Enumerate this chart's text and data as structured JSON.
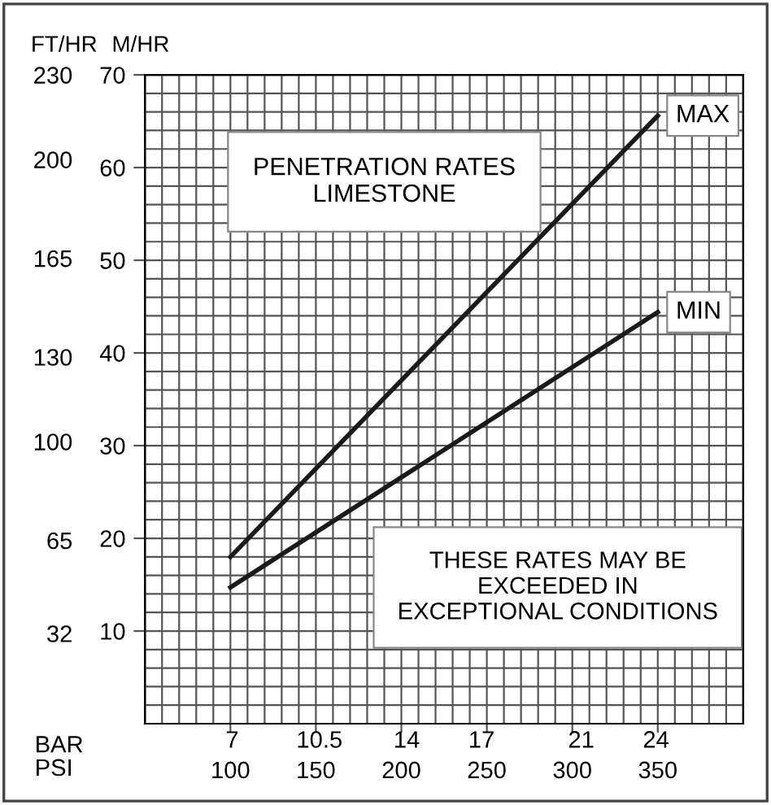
{
  "chart_data": {
    "type": "line",
    "title": "PENETRATION RATES\nLIMESTONE",
    "x": [
      100,
      350
    ],
    "series": [
      {
        "name": "MAX",
        "color": "#1a1a1a",
        "values": [
          18,
          65.6
        ]
      },
      {
        "name": "MIN",
        "color": "#1a1a1a",
        "values": [
          14.7,
          44.4
        ]
      }
    ],
    "xlabel": "PSI",
    "x2label": "BAR",
    "ylabel": "M/HR",
    "y2label": "FT/HR",
    "xlim": [
      50,
      400
    ],
    "xticks": [
      100,
      150,
      200,
      250,
      300,
      350
    ],
    "x2lim": [
      3.5,
      27.5
    ],
    "x2ticks": [
      7,
      10.5,
      14,
      17,
      21,
      24
    ],
    "ylim": [
      0,
      70
    ],
    "yticks": [
      10,
      20,
      30,
      40,
      50,
      60,
      70
    ],
    "y2lim": [
      0,
      230
    ],
    "y2ticks": [
      32,
      65,
      100,
      130,
      165,
      200,
      230
    ],
    "annotations": [
      "THESE RATES MAY BE\nEXCEEDED IN\nEXCEPTIONAL CONDITIONS"
    ],
    "grid": true,
    "legend": false,
    "marker": "none",
    "line_style": "solid"
  }
}
